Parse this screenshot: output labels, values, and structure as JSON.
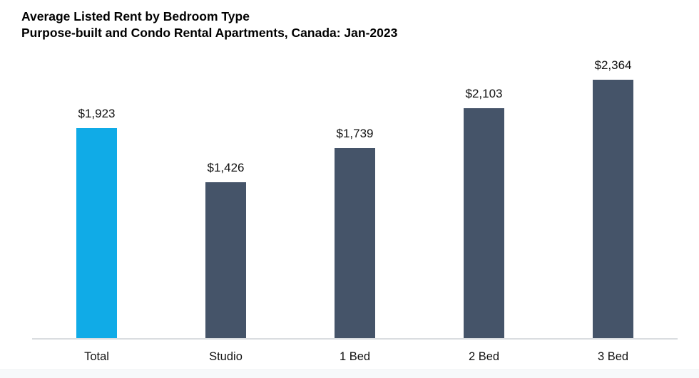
{
  "header": {
    "title": "Average Listed Rent by Bedroom Type",
    "subtitle": "Purpose-built and Condo Rental Apartments, Canada: Jan-2023"
  },
  "chart_data": {
    "type": "bar",
    "title": "Average Listed Rent by Bedroom Type",
    "subtitle": "Purpose-built and Condo Rental Apartments, Canada: Jan-2023",
    "categories": [
      "Total",
      "Studio",
      "1 Bed",
      "2 Bed",
      "3 Bed"
    ],
    "values": [
      1923,
      1426,
      1739,
      2103,
      2364
    ],
    "value_labels": [
      "$1,923",
      "$1,426",
      "$1,739",
      "$2,103",
      "$2,364"
    ],
    "bar_colors": [
      "#10abe7",
      "#455469",
      "#455469",
      "#455469",
      "#455469"
    ],
    "highlight_color": "#10abe7",
    "default_bar_color": "#455469",
    "axis_line_color": "#dadde0",
    "text_color": "#111111",
    "ylim": [
      0,
      2550
    ],
    "grid": false,
    "legend": false,
    "xlabel": "",
    "ylabel": ""
  }
}
